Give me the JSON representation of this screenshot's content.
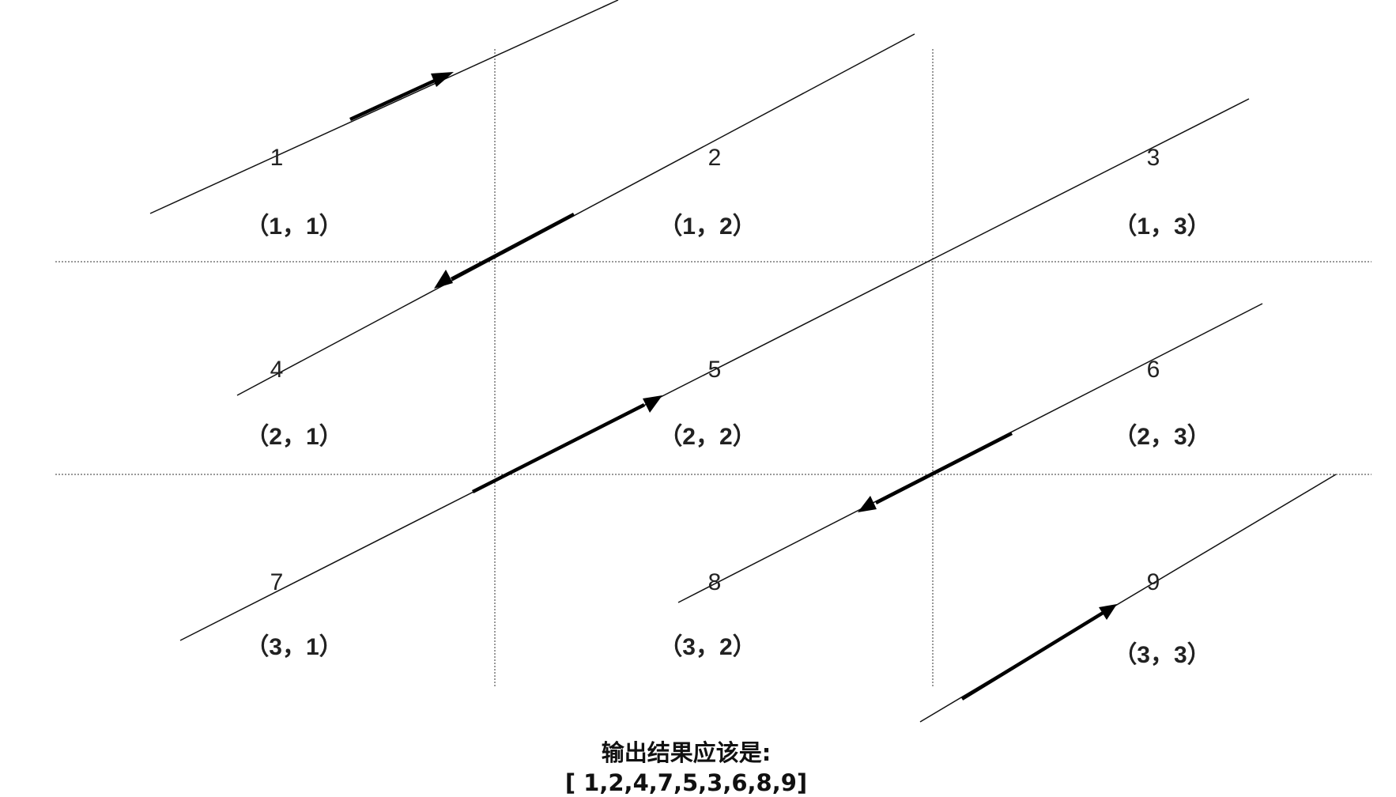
{
  "cells": [
    {
      "number": "1",
      "coord": "（1，1）"
    },
    {
      "number": "2",
      "coord": "（1，2）"
    },
    {
      "number": "3",
      "coord": "（1，3）"
    },
    {
      "number": "4",
      "coord": "（2，1）"
    },
    {
      "number": "5",
      "coord": "（2，2）"
    },
    {
      "number": "6",
      "coord": "（2，3）"
    },
    {
      "number": "7",
      "coord": "（3，1）"
    },
    {
      "number": "8",
      "coord": "（3，2）"
    },
    {
      "number": "9",
      "coord": "（3，3）"
    }
  ],
  "result": {
    "title": "输出结果应该是:",
    "value": "[ 1,2,4,7,5,3,6,8,9]"
  },
  "arrow_directions": [
    "up-right",
    "down-left",
    "up-right",
    "down-left",
    "up-right"
  ],
  "colors": {
    "line": "#111111",
    "arrow": "#000000",
    "background": "#ffffff"
  }
}
